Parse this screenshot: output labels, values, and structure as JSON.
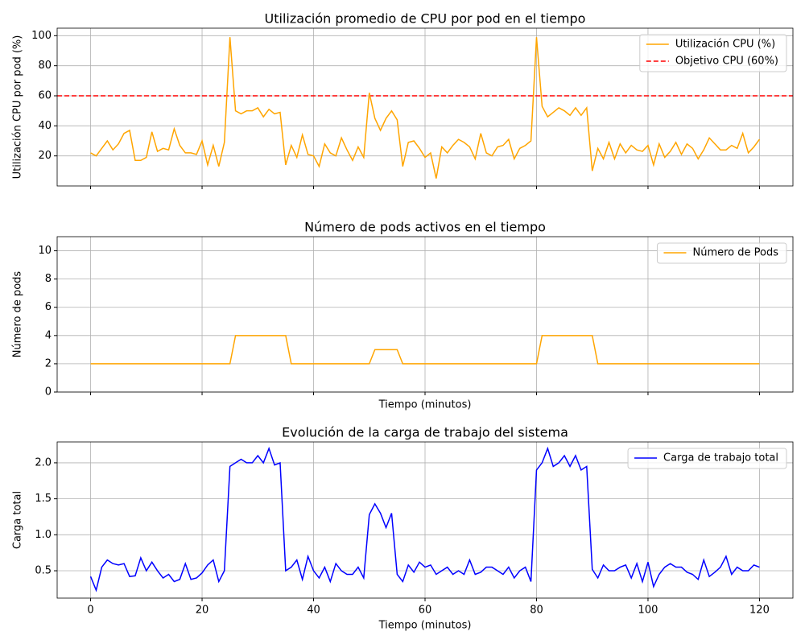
{
  "chart_data": [
    {
      "type": "line",
      "title": "Utilización promedio de CPU por pod en el tiempo",
      "ylabel": "Utilización CPU por pod (%)",
      "x": [
        0,
        1,
        2,
        3,
        4,
        5,
        6,
        7,
        8,
        9,
        10,
        11,
        12,
        13,
        14,
        15,
        16,
        17,
        18,
        19,
        20,
        21,
        22,
        23,
        24,
        25,
        26,
        27,
        28,
        29,
        30,
        31,
        32,
        33,
        34,
        35,
        36,
        37,
        38,
        39,
        40,
        41,
        42,
        43,
        44,
        45,
        46,
        47,
        48,
        49,
        50,
        51,
        52,
        53,
        54,
        55,
        56,
        57,
        58,
        59,
        60,
        61,
        62,
        63,
        64,
        65,
        66,
        67,
        68,
        69,
        70,
        71,
        72,
        73,
        74,
        75,
        76,
        77,
        78,
        79,
        80,
        81,
        82,
        83,
        84,
        85,
        86,
        87,
        88,
        89,
        90,
        91,
        92,
        93,
        94,
        95,
        96,
        97,
        98,
        99,
        100,
        101,
        102,
        103,
        104,
        105,
        106,
        107,
        108,
        109,
        110,
        111,
        112,
        113,
        114,
        115,
        116,
        117,
        118,
        119,
        120
      ],
      "series": [
        {
          "name": "Utilización CPU (%)",
          "color": "#ffa500",
          "values": [
            22,
            20,
            25,
            30,
            24,
            28,
            35,
            37,
            17,
            17,
            19,
            36,
            23,
            25,
            24,
            38,
            27,
            22,
            22,
            21,
            30,
            14,
            27,
            13,
            29,
            99,
            50,
            48,
            50,
            50,
            52,
            46,
            51,
            48,
            49,
            14,
            27,
            19,
            34,
            21,
            20,
            13,
            28,
            22,
            20,
            32,
            24,
            17,
            26,
            19,
            62,
            45,
            37,
            45,
            50,
            44,
            13,
            29,
            30,
            25,
            19,
            22,
            5,
            26,
            22,
            27,
            31,
            29,
            26,
            18,
            35,
            22,
            20,
            26,
            27,
            31,
            18,
            25,
            27,
            30,
            99,
            53,
            46,
            49,
            52,
            50,
            47,
            52,
            47,
            52,
            10,
            25,
            18,
            29,
            18,
            28,
            22,
            27,
            24,
            23,
            27,
            14,
            28,
            19,
            23,
            29,
            21,
            28,
            25,
            18,
            24,
            32,
            28,
            24,
            24,
            27,
            25,
            35,
            22,
            26,
            31
          ]
        }
      ],
      "hlines": [
        {
          "name": "Objetivo CPU (60%)",
          "value": 60,
          "color": "#ff0000",
          "style": "dashed"
        }
      ],
      "xlim": [
        -6,
        126
      ],
      "xticks": [
        0,
        20,
        40,
        60,
        80,
        100,
        120
      ],
      "show_xticklabels": false,
      "ylim": [
        0,
        105
      ],
      "yticks": [
        20,
        40,
        60,
        80,
        100
      ],
      "grid": true,
      "legend": "upper right"
    },
    {
      "type": "line",
      "title": "Número de pods activos en el tiempo",
      "ylabel": "Número de pods",
      "xlabel": "Tiempo (minutos)",
      "x": [
        0,
        1,
        2,
        3,
        4,
        5,
        6,
        7,
        8,
        9,
        10,
        11,
        12,
        13,
        14,
        15,
        16,
        17,
        18,
        19,
        20,
        21,
        22,
        23,
        24,
        25,
        26,
        27,
        28,
        29,
        30,
        31,
        32,
        33,
        34,
        35,
        36,
        37,
        38,
        39,
        40,
        41,
        42,
        43,
        44,
        45,
        46,
        47,
        48,
        49,
        50,
        51,
        52,
        53,
        54,
        55,
        56,
        57,
        58,
        59,
        60,
        61,
        62,
        63,
        64,
        65,
        66,
        67,
        68,
        69,
        70,
        71,
        72,
        73,
        74,
        75,
        76,
        77,
        78,
        79,
        80,
        81,
        82,
        83,
        84,
        85,
        86,
        87,
        88,
        89,
        90,
        91,
        92,
        93,
        94,
        95,
        96,
        97,
        98,
        99,
        100,
        101,
        102,
        103,
        104,
        105,
        106,
        107,
        108,
        109,
        110,
        111,
        112,
        113,
        114,
        115,
        116,
        117,
        118,
        119,
        120
      ],
      "series": [
        {
          "name": "Número de Pods",
          "color": "#ffa500",
          "values": [
            2,
            2,
            2,
            2,
            2,
            2,
            2,
            2,
            2,
            2,
            2,
            2,
            2,
            2,
            2,
            2,
            2,
            2,
            2,
            2,
            2,
            2,
            2,
            2,
            2,
            2,
            4,
            4,
            4,
            4,
            4,
            4,
            4,
            4,
            4,
            4,
            2,
            2,
            2,
            2,
            2,
            2,
            2,
            2,
            2,
            2,
            2,
            2,
            2,
            2,
            2,
            3,
            3,
            3,
            3,
            3,
            2,
            2,
            2,
            2,
            2,
            2,
            2,
            2,
            2,
            2,
            2,
            2,
            2,
            2,
            2,
            2,
            2,
            2,
            2,
            2,
            2,
            2,
            2,
            2,
            2,
            4,
            4,
            4,
            4,
            4,
            4,
            4,
            4,
            4,
            4,
            2,
            2,
            2,
            2,
            2,
            2,
            2,
            2,
            2,
            2,
            2,
            2,
            2,
            2,
            2,
            2,
            2,
            2,
            2,
            2,
            2,
            2,
            2,
            2,
            2,
            2,
            2,
            2,
            2,
            2
          ]
        }
      ],
      "xlim": [
        -6,
        126
      ],
      "xticks": [
        0,
        20,
        40,
        60,
        80,
        100,
        120
      ],
      "show_xticklabels": false,
      "ylim": [
        0,
        11
      ],
      "yticks": [
        0,
        2,
        4,
        6,
        8,
        10
      ],
      "grid": true,
      "legend": "upper right"
    },
    {
      "type": "line",
      "title": "Evolución de la carga de trabajo del sistema",
      "ylabel": "Carga total",
      "xlabel": "Tiempo (minutos)",
      "x": [
        0,
        1,
        2,
        3,
        4,
        5,
        6,
        7,
        8,
        9,
        10,
        11,
        12,
        13,
        14,
        15,
        16,
        17,
        18,
        19,
        20,
        21,
        22,
        23,
        24,
        25,
        26,
        27,
        28,
        29,
        30,
        31,
        32,
        33,
        34,
        35,
        36,
        37,
        38,
        39,
        40,
        41,
        42,
        43,
        44,
        45,
        46,
        47,
        48,
        49,
        50,
        51,
        52,
        53,
        54,
        55,
        56,
        57,
        58,
        59,
        60,
        61,
        62,
        63,
        64,
        65,
        66,
        67,
        68,
        69,
        70,
        71,
        72,
        73,
        74,
        75,
        76,
        77,
        78,
        79,
        80,
        81,
        82,
        83,
        84,
        85,
        86,
        87,
        88,
        89,
        90,
        91,
        92,
        93,
        94,
        95,
        96,
        97,
        98,
        99,
        100,
        101,
        102,
        103,
        104,
        105,
        106,
        107,
        108,
        109,
        110,
        111,
        112,
        113,
        114,
        115,
        116,
        117,
        118,
        119,
        120
      ],
      "series": [
        {
          "name": "Carga de trabajo total",
          "color": "#0000ff",
          "values": [
            0.42,
            0.23,
            0.55,
            0.65,
            0.6,
            0.58,
            0.6,
            0.42,
            0.43,
            0.68,
            0.5,
            0.62,
            0.5,
            0.4,
            0.45,
            0.35,
            0.38,
            0.6,
            0.38,
            0.4,
            0.47,
            0.58,
            0.65,
            0.35,
            0.5,
            1.95,
            2.0,
            2.05,
            2.0,
            2.0,
            2.1,
            2.0,
            2.2,
            1.97,
            2.0,
            0.5,
            0.55,
            0.65,
            0.38,
            0.7,
            0.5,
            0.4,
            0.55,
            0.35,
            0.6,
            0.5,
            0.45,
            0.45,
            0.55,
            0.4,
            1.28,
            1.43,
            1.3,
            1.1,
            1.3,
            0.45,
            0.35,
            0.58,
            0.48,
            0.62,
            0.55,
            0.58,
            0.45,
            0.5,
            0.55,
            0.45,
            0.5,
            0.45,
            0.65,
            0.45,
            0.48,
            0.55,
            0.55,
            0.5,
            0.45,
            0.55,
            0.4,
            0.5,
            0.55,
            0.35,
            1.9,
            2.0,
            2.2,
            1.95,
            2.0,
            2.1,
            1.95,
            2.1,
            1.9,
            1.95,
            0.52,
            0.4,
            0.58,
            0.5,
            0.5,
            0.55,
            0.58,
            0.4,
            0.6,
            0.35,
            0.62,
            0.28,
            0.45,
            0.55,
            0.6,
            0.55,
            0.55,
            0.48,
            0.45,
            0.38,
            0.65,
            0.42,
            0.48,
            0.55,
            0.7,
            0.45,
            0.55,
            0.5,
            0.5,
            0.58,
            0.55
          ]
        }
      ],
      "xlim": [
        -6,
        126
      ],
      "xticks": [
        0,
        20,
        40,
        60,
        80,
        100,
        120
      ],
      "show_xticklabels": true,
      "ylim": [
        0.12,
        2.29
      ],
      "yticks": [
        {
          "value": 0.5,
          "label": "0.5"
        },
        {
          "value": 1.0,
          "label": "1.0"
        },
        {
          "value": 1.5,
          "label": "1.5"
        },
        {
          "value": 2.0,
          "label": "2.0"
        }
      ],
      "grid": true,
      "legend": "upper right"
    }
  ]
}
